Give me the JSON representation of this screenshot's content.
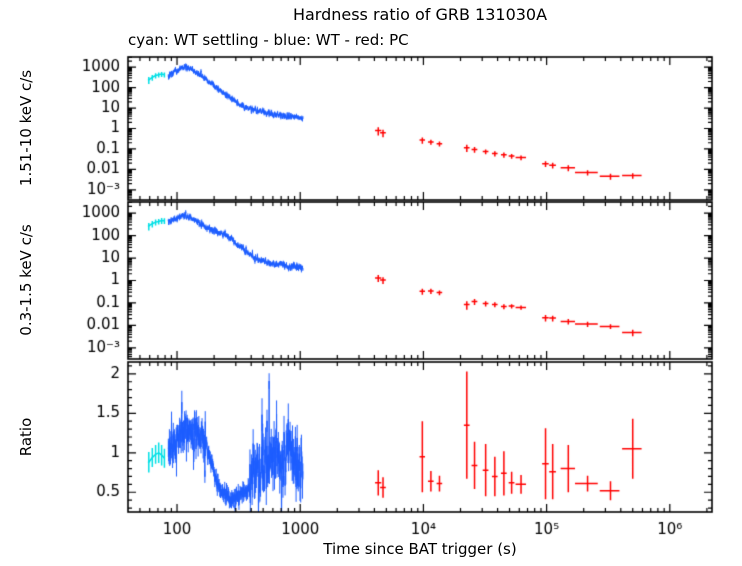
{
  "colors": {
    "cyan": "#00E0E6",
    "blue": "#1E5EFF",
    "red": "#FF0000",
    "axis": "#000000",
    "background": "#FFFFFF"
  },
  "chart_data": {
    "type": "line",
    "title": "Hardness ratio of GRB 131030A",
    "subtitle": "cyan: WT settling - blue: WT - red: PC",
    "xlabel": "Time since BAT trigger (s)",
    "x_scale": "log",
    "x_range": [
      40,
      2200000
    ],
    "x_ticks": [
      {
        "v": 100,
        "label": "100"
      },
      {
        "v": 1000,
        "label": "1000"
      },
      {
        "v": 10000,
        "label": "10⁴"
      },
      {
        "v": 100000,
        "label": "10⁵"
      },
      {
        "v": 1000000,
        "label": "10⁶"
      }
    ],
    "grid": false,
    "legend_position": "subtitle",
    "panels": [
      {
        "id": "hard",
        "ylabel": "1.51-10 keV c/s",
        "y_scale": "log",
        "y_range": [
          0.000316,
          3162
        ],
        "y_ticks": [
          {
            "v": 1000,
            "label": "1000"
          },
          {
            "v": 100,
            "label": "100"
          },
          {
            "v": 10,
            "label": "10"
          },
          {
            "v": 1,
            "label": "1"
          },
          {
            "v": 0.1,
            "label": "0.1"
          },
          {
            "v": 0.01,
            "label": "0.01"
          },
          {
            "v": 0.001,
            "label": "10⁻³"
          }
        ]
      },
      {
        "id": "soft",
        "ylabel": "0.3-1.5 keV c/s",
        "y_scale": "log",
        "y_range": [
          0.000316,
          3162
        ],
        "y_ticks": [
          {
            "v": 1000,
            "label": "1000"
          },
          {
            "v": 100,
            "label": "100"
          },
          {
            "v": 10,
            "label": "10"
          },
          {
            "v": 1,
            "label": "1"
          },
          {
            "v": 0.1,
            "label": "0.1"
          },
          {
            "v": 0.01,
            "label": "0.01"
          },
          {
            "v": 0.001,
            "label": "10⁻³"
          }
        ]
      },
      {
        "id": "ratio",
        "ylabel": "Ratio",
        "y_scale": "linear",
        "y_range": [
          0.25,
          2.15
        ],
        "y_ticks": [
          {
            "v": 0.5,
            "label": "0.5"
          },
          {
            "v": 1,
            "label": "1"
          },
          {
            "v": 1.5,
            "label": "1.5"
          },
          {
            "v": 2,
            "label": "2"
          }
        ]
      }
    ],
    "series": {
      "wt_settling": {
        "label": "WT settling",
        "color_key": "cyan",
        "points": [
          {
            "t": 59,
            "t_err": 1,
            "hard": 240,
            "hard_err": 90,
            "soft": 270,
            "soft_err": 100,
            "ratio": 0.88,
            "ratio_err": 0.13
          },
          {
            "t": 63,
            "t_err": 1,
            "hard": 320,
            "hard_err": 100,
            "soft": 340,
            "soft_err": 110,
            "ratio": 0.94,
            "ratio_err": 0.12
          },
          {
            "t": 67,
            "t_err": 1,
            "hard": 390,
            "hard_err": 110,
            "soft": 400,
            "soft_err": 120,
            "ratio": 0.98,
            "ratio_err": 0.12
          },
          {
            "t": 71,
            "t_err": 1,
            "hard": 430,
            "hard_err": 120,
            "soft": 430,
            "soft_err": 120,
            "ratio": 1.0,
            "ratio_err": 0.13
          },
          {
            "t": 75,
            "t_err": 1,
            "hard": 460,
            "hard_err": 130,
            "soft": 470,
            "soft_err": 140,
            "ratio": 0.97,
            "ratio_err": 0.13
          },
          {
            "t": 79,
            "t_err": 1,
            "hard": 430,
            "hard_err": 120,
            "soft": 460,
            "soft_err": 130,
            "ratio": 0.93,
            "ratio_err": 0.12
          }
        ]
      },
      "wt": {
        "label": "WT",
        "color_key": "blue",
        "t_range": [
          85,
          1050
        ],
        "anchors": [
          {
            "t": 85,
            "hard": 380,
            "ratio": 1.05
          },
          {
            "t": 95,
            "hard": 600,
            "ratio": 1.15
          },
          {
            "t": 105,
            "hard": 850,
            "ratio": 1.2
          },
          {
            "t": 115,
            "hard": 1000,
            "ratio": 1.25
          },
          {
            "t": 125,
            "hard": 920,
            "ratio": 1.3
          },
          {
            "t": 140,
            "hard": 620,
            "ratio": 1.25
          },
          {
            "t": 160,
            "hard": 370,
            "ratio": 1.2
          },
          {
            "t": 180,
            "hard": 215,
            "ratio": 1.05
          },
          {
            "t": 200,
            "hard": 125,
            "ratio": 0.75
          },
          {
            "t": 220,
            "hard": 78,
            "ratio": 0.55
          },
          {
            "t": 240,
            "hard": 52,
            "ratio": 0.46
          },
          {
            "t": 270,
            "hard": 32,
            "ratio": 0.42
          },
          {
            "t": 300,
            "hard": 19,
            "ratio": 0.44
          },
          {
            "t": 340,
            "hard": 12.5,
            "ratio": 0.47
          },
          {
            "t": 380,
            "hard": 9.5,
            "ratio": 0.55
          },
          {
            "t": 420,
            "hard": 8.3,
            "ratio": 0.75
          },
          {
            "t": 470,
            "hard": 7.2,
            "ratio": 0.95
          },
          {
            "t": 520,
            "hard": 6.3,
            "ratio": 0.9
          },
          {
            "t": 580,
            "hard": 5.6,
            "ratio": 1.0
          },
          {
            "t": 650,
            "hard": 5.0,
            "ratio": 0.95
          },
          {
            "t": 730,
            "hard": 4.4,
            "ratio": 0.9
          },
          {
            "t": 820,
            "hard": 4.0,
            "ratio": 1.05
          },
          {
            "t": 910,
            "hard": 3.6,
            "ratio": 0.85
          },
          {
            "t": 1050,
            "hard": 3.1,
            "ratio": 0.9
          }
        ],
        "scatter": {
          "rate_dex": 0.07,
          "ratio_sigma_early": 0.1,
          "ratio_sigma_dip": 0.045,
          "ratio_sigma_late": 0.2
        }
      },
      "pc": {
        "label": "PC",
        "color_key": "red",
        "points": [
          {
            "t": 4300,
            "t_err": 250,
            "hard": 0.8,
            "hard_err": 0.35,
            "soft": 1.3,
            "soft_err": 0.45,
            "ratio": 0.62,
            "ratio_err": 0.16
          },
          {
            "t": 4700,
            "t_err": 250,
            "hard": 0.62,
            "hard_err": 0.25,
            "soft": 1.05,
            "soft_err": 0.35,
            "ratio": 0.56,
            "ratio_err": 0.13
          },
          {
            "t": 9800,
            "t_err": 500,
            "hard": 0.27,
            "hard_err": 0.09,
            "soft": 0.33,
            "soft_err": 0.1,
            "ratio": 0.95,
            "ratio_err": 0.45
          },
          {
            "t": 11500,
            "t_err": 600,
            "hard": 0.22,
            "hard_err": 0.06,
            "soft": 0.34,
            "soft_err": 0.09,
            "ratio": 0.64,
            "ratio_err": 0.13
          },
          {
            "t": 13500,
            "t_err": 700,
            "hard": 0.18,
            "hard_err": 0.05,
            "soft": 0.29,
            "soft_err": 0.07,
            "ratio": 0.61,
            "ratio_err": 0.1
          },
          {
            "t": 22500,
            "t_err": 1200,
            "hard": 0.115,
            "hard_err": 0.045,
            "soft": 0.085,
            "soft_err": 0.035,
            "ratio": 1.35,
            "ratio_err": 0.68
          },
          {
            "t": 26000,
            "t_err": 1400,
            "hard": 0.095,
            "hard_err": 0.03,
            "soft": 0.115,
            "soft_err": 0.035,
            "ratio": 0.84,
            "ratio_err": 0.3
          },
          {
            "t": 32000,
            "t_err": 1700,
            "hard": 0.075,
            "hard_err": 0.02,
            "soft": 0.095,
            "soft_err": 0.025,
            "ratio": 0.78,
            "ratio_err": 0.33
          },
          {
            "t": 38000,
            "t_err": 2000,
            "hard": 0.06,
            "hard_err": 0.018,
            "soft": 0.086,
            "soft_err": 0.022,
            "ratio": 0.7,
            "ratio_err": 0.25
          },
          {
            "t": 45000,
            "t_err": 2400,
            "hard": 0.052,
            "hard_err": 0.015,
            "soft": 0.07,
            "soft_err": 0.018,
            "ratio": 0.74,
            "ratio_err": 0.28
          },
          {
            "t": 52000,
            "t_err": 2800,
            "hard": 0.045,
            "hard_err": 0.012,
            "soft": 0.072,
            "soft_err": 0.016,
            "ratio": 0.62,
            "ratio_err": 0.14
          },
          {
            "t": 62000,
            "t_err": 6000,
            "hard": 0.038,
            "hard_err": 0.01,
            "soft": 0.063,
            "soft_err": 0.014,
            "ratio": 0.6,
            "ratio_err": 0.12
          },
          {
            "t": 98000,
            "t_err": 6000,
            "hard": 0.019,
            "hard_err": 0.006,
            "soft": 0.022,
            "soft_err": 0.007,
            "ratio": 0.86,
            "ratio_err": 0.45
          },
          {
            "t": 112000,
            "t_err": 7000,
            "hard": 0.016,
            "hard_err": 0.005,
            "soft": 0.021,
            "soft_err": 0.006,
            "ratio": 0.76,
            "ratio_err": 0.35
          },
          {
            "t": 150000,
            "t_err": 20000,
            "hard": 0.012,
            "hard_err": 0.004,
            "soft": 0.015,
            "soft_err": 0.004,
            "ratio": 0.8,
            "ratio_err": 0.3
          },
          {
            "t": 215000,
            "t_err": 45000,
            "hard": 0.007,
            "hard_err": 0.002,
            "soft": 0.0115,
            "soft_err": 0.003,
            "ratio": 0.61,
            "ratio_err": 0.1
          },
          {
            "t": 330000,
            "t_err": 60000,
            "hard": 0.0046,
            "hard_err": 0.0015,
            "soft": 0.009,
            "soft_err": 0.0022,
            "ratio": 0.52,
            "ratio_err": 0.12
          },
          {
            "t": 500000,
            "t_err": 90000,
            "hard": 0.005,
            "hard_err": 0.0015,
            "soft": 0.0048,
            "soft_err": 0.0015,
            "ratio": 1.05,
            "ratio_err": 0.38
          }
        ]
      }
    }
  }
}
